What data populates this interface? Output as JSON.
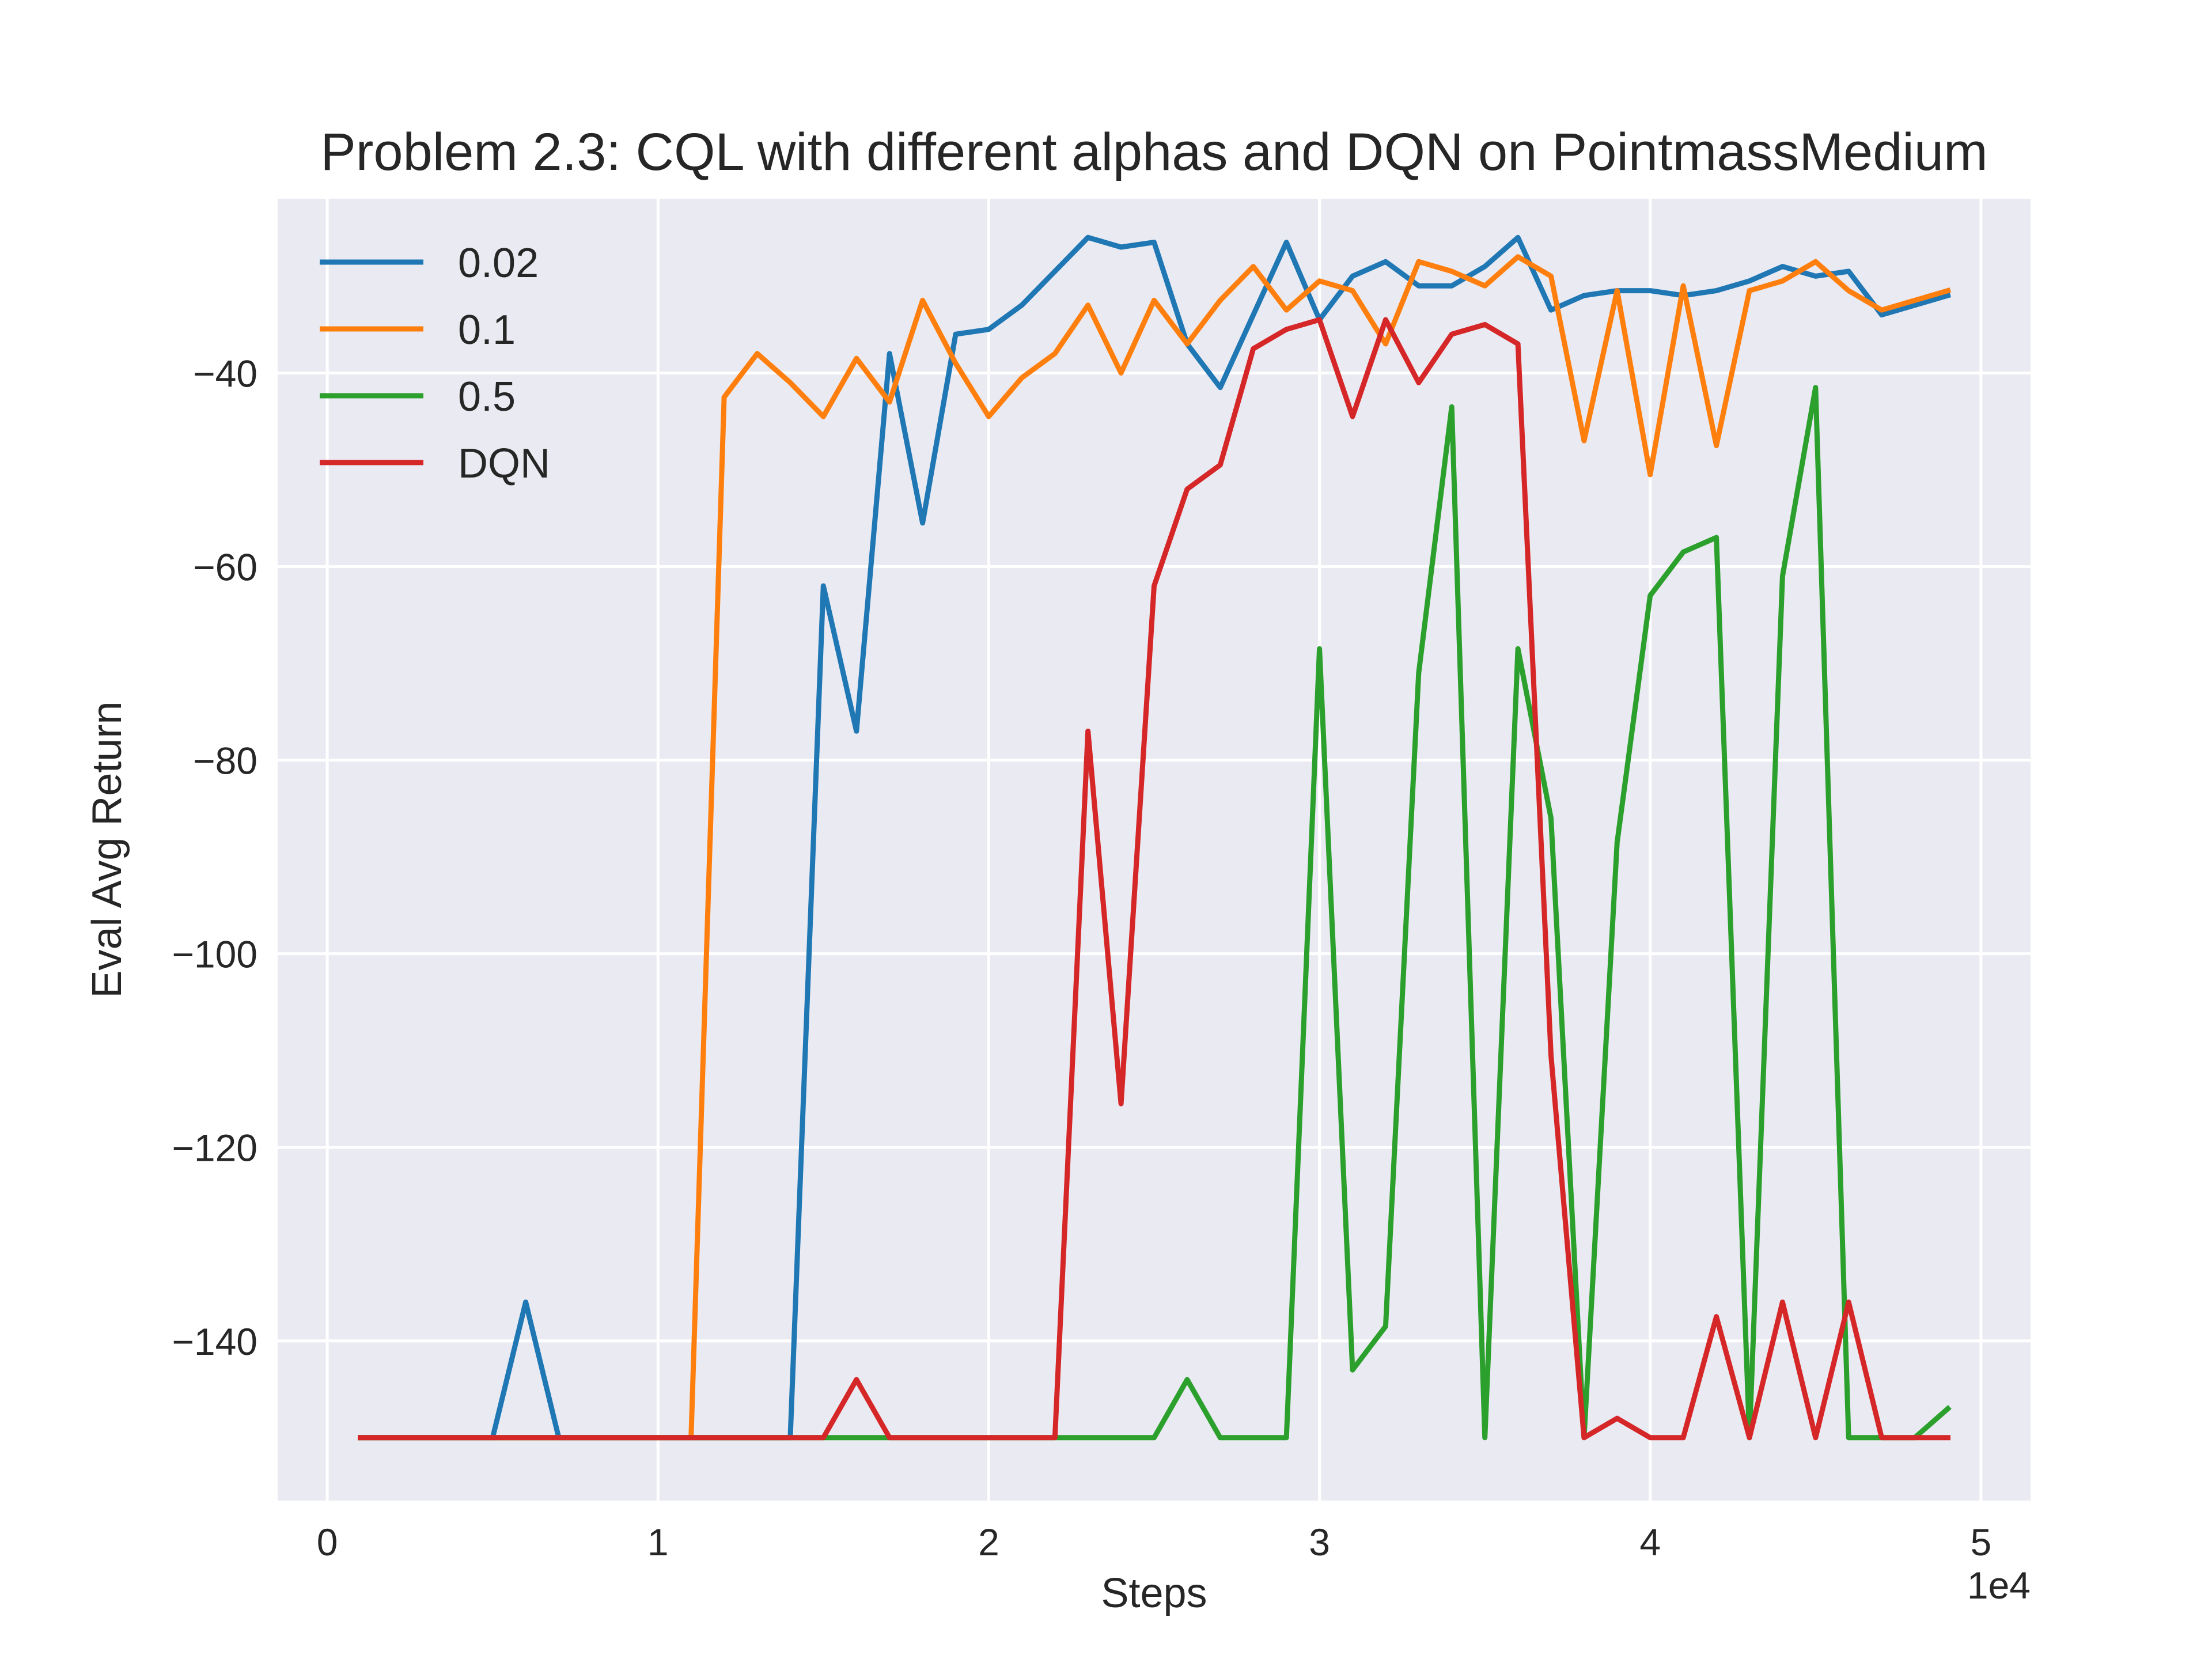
{
  "chart_data": {
    "type": "line",
    "title": "Problem 2.3: CQL with different alphas and DQN on PointmassMedium",
    "xlabel": "Steps",
    "ylabel": "Eval Avg Return",
    "x_offset_label": "1e4",
    "xlim": [
      -0.15,
      5.15
    ],
    "ylim": [
      -156.5,
      -22
    ],
    "x_ticks": [
      0,
      1,
      2,
      3,
      4,
      5
    ],
    "y_ticks": [
      -140,
      -120,
      -100,
      -80,
      -60,
      -40
    ],
    "x_tick_labels": [
      "0",
      "1",
      "2",
      "3",
      "4",
      "5"
    ],
    "y_tick_labels": [
      "−140",
      "−120",
      "−100",
      "−80",
      "−60",
      "−40"
    ],
    "grid": true,
    "legend_position": "top-left",
    "x": [
      0.1,
      0.2,
      0.3,
      0.4,
      0.5,
      0.6,
      0.7,
      0.8,
      0.9,
      1.0,
      1.1,
      1.2,
      1.3,
      1.4,
      1.5,
      1.6,
      1.7,
      1.8,
      1.9,
      2.0,
      2.1,
      2.2,
      2.3,
      2.4,
      2.5,
      2.6,
      2.7,
      2.8,
      2.9,
      3.0,
      3.1,
      3.2,
      3.3,
      3.4,
      3.5,
      3.6,
      3.7,
      3.8,
      3.9,
      4.0,
      4.1,
      4.2,
      4.3,
      4.4,
      4.5,
      4.6,
      4.7,
      4.8,
      4.9
    ],
    "series": [
      {
        "name": "0.02",
        "color": "#1f77b4",
        "values": [
          -150,
          -150,
          -150,
          -150,
          -150,
          -136,
          -150,
          -150,
          -150,
          -150,
          -150,
          -150,
          -150,
          -150,
          -62,
          -77,
          -38,
          -55.5,
          -36,
          -35.5,
          -33,
          -29.5,
          -26,
          -27,
          -26.5,
          -37,
          -41.5,
          -34,
          -26.5,
          -34.5,
          -30,
          -28.5,
          -31,
          -31,
          -29,
          -26,
          -33.5,
          -32,
          -31.5,
          -31.5,
          -32,
          -31.5,
          -30.5,
          -29,
          -30,
          -29.5,
          -34,
          -33,
          -32
        ]
      },
      {
        "name": "0.1",
        "color": "#ff7f0e",
        "values": [
          -150,
          -150,
          -150,
          -150,
          -150,
          -150,
          -150,
          -150,
          -150,
          -150,
          -150,
          -42.5,
          -38,
          -41,
          -44.5,
          -38.5,
          -43,
          -32.5,
          -39,
          -44.5,
          -40.5,
          -38,
          -33,
          -40,
          -32.5,
          -37,
          -32.5,
          -29,
          -33.5,
          -30.5,
          -31.5,
          -37,
          -28.5,
          -29.5,
          -31,
          -28,
          -30,
          -47,
          -31.5,
          -50.5,
          -31,
          -47.5,
          -31.5,
          -30.5,
          -28.5,
          -31.5,
          -33.5,
          -32.5,
          -31.5
        ]
      },
      {
        "name": "0.5",
        "color": "#2ca02c",
        "values": [
          -150,
          -150,
          -150,
          -150,
          -150,
          -150,
          -150,
          -150,
          -150,
          -150,
          -150,
          -150,
          -150,
          -150,
          -150,
          -150,
          -150,
          -150,
          -150,
          -150,
          -150,
          -150,
          -150,
          -150,
          -150,
          -144,
          -150,
          -150,
          -150,
          -68.5,
          -143,
          -138.5,
          -71,
          -43.5,
          -150,
          -68.5,
          -86,
          -150,
          -88.5,
          -63,
          -58.5,
          -57,
          -150,
          -61,
          -41.5,
          -150,
          -150,
          -150,
          -147
        ]
      },
      {
        "name": "DQN",
        "color": "#d62728",
        "values": [
          -150,
          -150,
          -150,
          -150,
          -150,
          -150,
          -150,
          -150,
          -150,
          -150,
          -150,
          -150,
          -150,
          -150,
          -150,
          -144,
          -150,
          -150,
          -150,
          -150,
          -150,
          -150,
          -77,
          -115.5,
          -62,
          -52,
          -49.5,
          -37.5,
          -35.5,
          -34.5,
          -44.5,
          -34.5,
          -41,
          -36,
          -35,
          -37,
          -110.5,
          -150,
          -148,
          -150,
          -150,
          -137.5,
          -150,
          -136,
          -150,
          -136,
          -150,
          -150,
          -150
        ]
      }
    ]
  }
}
